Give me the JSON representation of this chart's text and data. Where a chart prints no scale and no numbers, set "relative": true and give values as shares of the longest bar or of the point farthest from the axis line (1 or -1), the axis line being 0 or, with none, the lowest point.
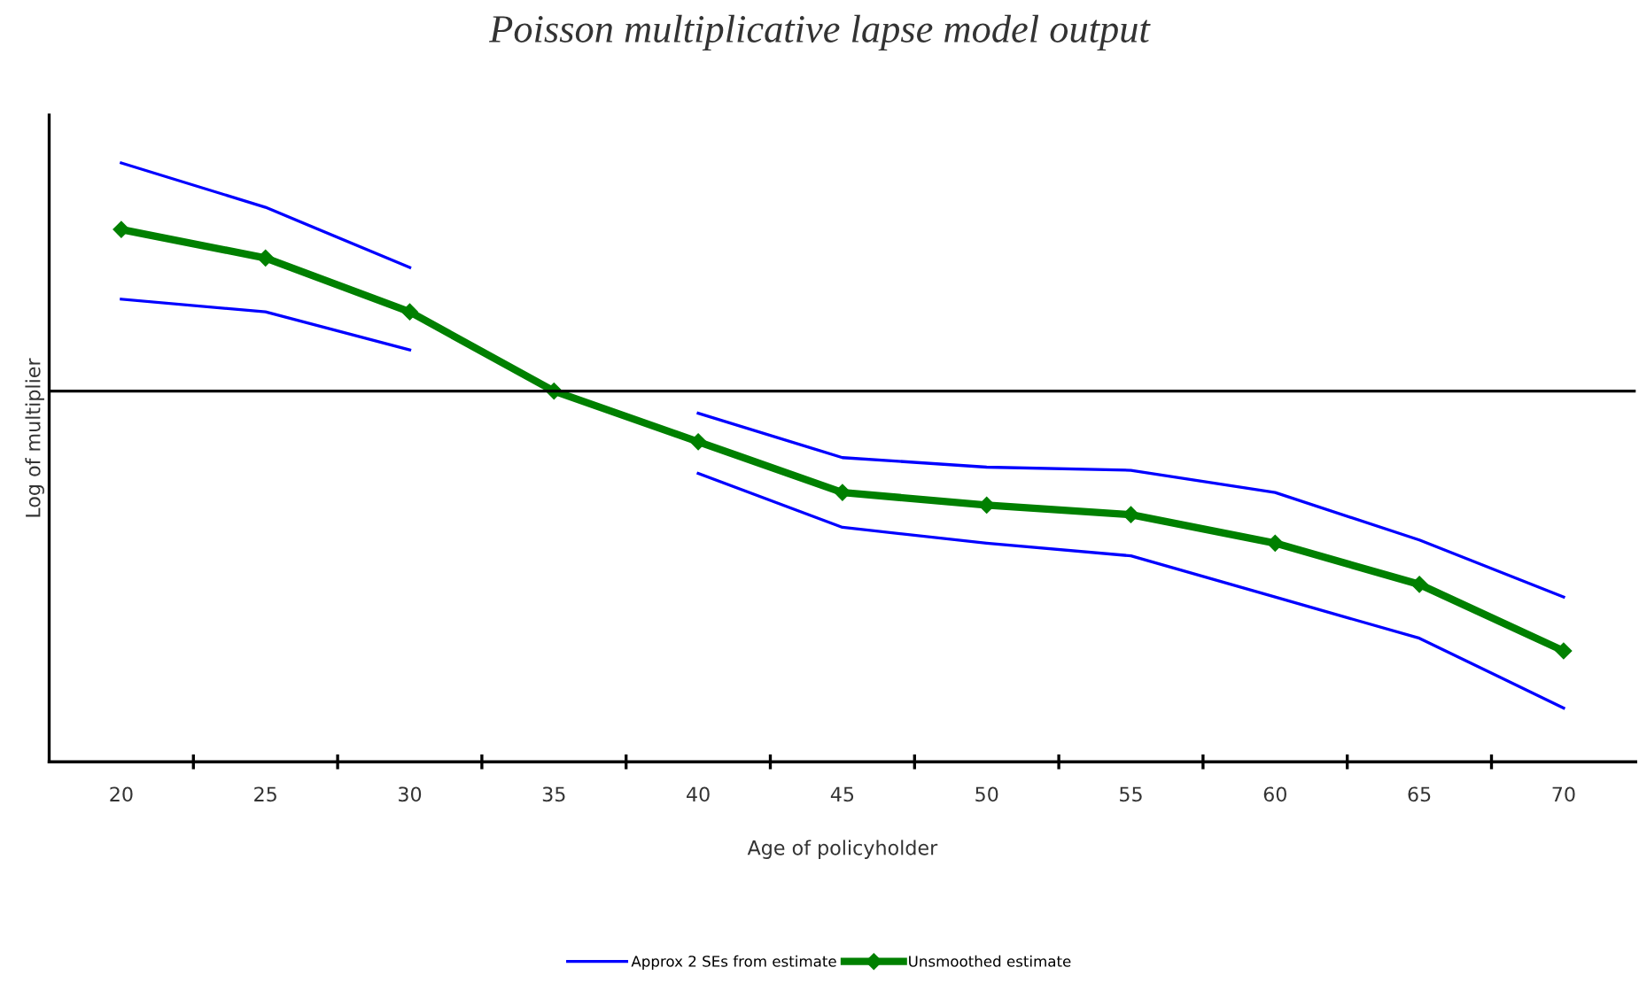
{
  "chart_data": {
    "type": "line",
    "title": "Poisson multiplicative lapse model output",
    "xlabel": "Age of policyholder",
    "ylabel": "Log of multiplier",
    "relative": true,
    "categories": [
      "20",
      "25",
      "30",
      "35",
      "40",
      "45",
      "50",
      "55",
      "60",
      "65",
      "70"
    ],
    "series": [
      {
        "name": "Approx 2 SEs from estimate",
        "color": "#0000ff",
        "marker": "none",
        "values": [
          0.72,
          0.58,
          0.39,
          null,
          -0.07,
          -0.21,
          -0.24,
          -0.25,
          -0.32,
          -0.47,
          -0.65
        ]
      },
      {
        "color": "#0000ff",
        "marker": "none",
        "values": [
          0.29,
          0.25,
          0.13,
          null,
          -0.26,
          -0.43,
          -0.48,
          -0.52,
          -0.65,
          -0.78,
          -1
        ]
      },
      {
        "name": "Unsmoothed estimate",
        "color": "#008000",
        "marker": "diamond",
        "values": [
          0.51,
          0.42,
          0.25,
          0,
          -0.16,
          -0.32,
          -0.36,
          -0.39,
          -0.48,
          -0.61,
          -0.82
        ]
      }
    ],
    "line_style": "solid",
    "grid": false,
    "legend": "bottom"
  }
}
